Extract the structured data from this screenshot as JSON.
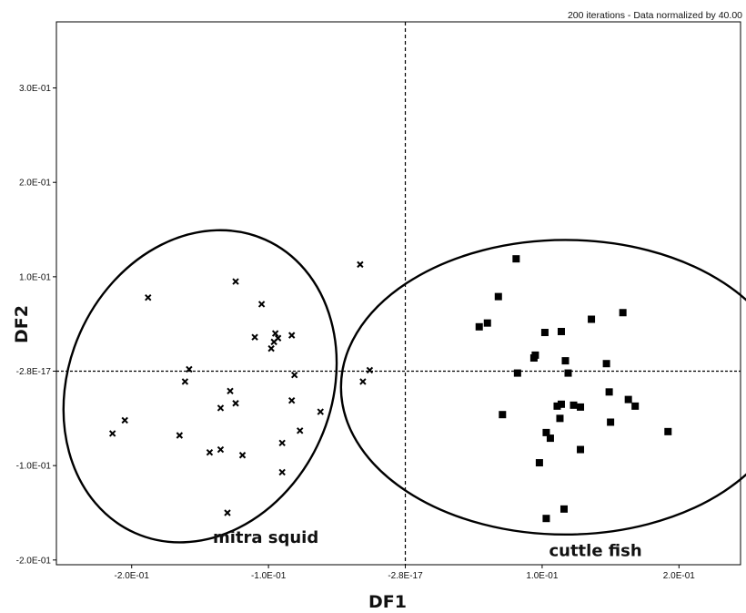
{
  "caption": "200 iterations - Data normalized by 40.00",
  "chart_data": {
    "type": "scatter",
    "xlabel": "DF1",
    "ylabel": "DF2",
    "xlim": [
      -0.255,
      0.245
    ],
    "ylim": [
      -0.205,
      0.37
    ],
    "x_ticks": [
      {
        "value": -0.2,
        "label": "-2.0E-01"
      },
      {
        "value": -0.1,
        "label": "-1.0E-01"
      },
      {
        "value": 0.0,
        "label": "-2.8E-17"
      },
      {
        "value": 0.1,
        "label": "1.0E-01"
      },
      {
        "value": 0.2,
        "label": "2.0E-01"
      }
    ],
    "y_ticks": [
      {
        "value": 0.3,
        "label": "3.0E-01"
      },
      {
        "value": 0.2,
        "label": "2.0E-01"
      },
      {
        "value": 0.1,
        "label": "1.0E-01"
      },
      {
        "value": 0.0,
        "label": "-2.8E-17"
      },
      {
        "value": -0.1,
        "label": "-1.0E-01"
      },
      {
        "value": -0.2,
        "label": "-2.0E-01"
      }
    ],
    "reference_lines": {
      "x": 0.0,
      "y": 0.0
    },
    "series": [
      {
        "name": "mitra squid",
        "marker": "x",
        "ellipse": {
          "cx": -0.15,
          "cy": -0.016,
          "rx": 0.096,
          "ry": 0.17,
          "rotation_deg": 24
        },
        "points": [
          [
            -0.033,
            0.113
          ],
          [
            -0.188,
            0.078
          ],
          [
            -0.124,
            0.095
          ],
          [
            -0.105,
            0.071
          ],
          [
            -0.095,
            0.04
          ],
          [
            -0.11,
            0.036
          ],
          [
            -0.083,
            0.038
          ],
          [
            -0.093,
            0.035
          ],
          [
            -0.096,
            0.031
          ],
          [
            -0.098,
            0.024
          ],
          [
            -0.158,
            0.002
          ],
          [
            -0.026,
            0.001
          ],
          [
            -0.081,
            -0.004
          ],
          [
            -0.161,
            -0.011
          ],
          [
            -0.031,
            -0.011
          ],
          [
            -0.128,
            -0.021
          ],
          [
            -0.083,
            -0.031
          ],
          [
            -0.124,
            -0.034
          ],
          [
            -0.135,
            -0.039
          ],
          [
            -0.062,
            -0.043
          ],
          [
            -0.205,
            -0.052
          ],
          [
            -0.214,
            -0.066
          ],
          [
            -0.077,
            -0.063
          ],
          [
            -0.165,
            -0.068
          ],
          [
            -0.09,
            -0.076
          ],
          [
            -0.135,
            -0.083
          ],
          [
            -0.143,
            -0.086
          ],
          [
            -0.119,
            -0.089
          ],
          [
            -0.09,
            -0.107
          ],
          [
            -0.13,
            -0.15
          ]
        ]
      },
      {
        "name": "cuttle fish",
        "marker": "square",
        "ellipse": {
          "cx": 0.117,
          "cy": -0.017,
          "rx": 0.164,
          "ry": 0.156,
          "rotation_deg": 0
        },
        "points": [
          [
            0.081,
            0.119
          ],
          [
            0.068,
            0.079
          ],
          [
            0.06,
            0.051
          ],
          [
            0.054,
            0.047
          ],
          [
            0.136,
            0.055
          ],
          [
            0.159,
            0.062
          ],
          [
            0.102,
            0.041
          ],
          [
            0.114,
            0.042
          ],
          [
            0.095,
            0.017
          ],
          [
            0.094,
            0.014
          ],
          [
            0.117,
            0.011
          ],
          [
            0.147,
            0.008
          ],
          [
            0.082,
            -0.002
          ],
          [
            0.119,
            -0.002
          ],
          [
            0.149,
            -0.022
          ],
          [
            0.163,
            -0.03
          ],
          [
            0.168,
            -0.037
          ],
          [
            0.114,
            -0.035
          ],
          [
            0.123,
            -0.036
          ],
          [
            0.111,
            -0.037
          ],
          [
            0.128,
            -0.038
          ],
          [
            0.071,
            -0.046
          ],
          [
            0.113,
            -0.05
          ],
          [
            0.15,
            -0.054
          ],
          [
            0.192,
            -0.064
          ],
          [
            0.103,
            -0.065
          ],
          [
            0.106,
            -0.071
          ],
          [
            0.128,
            -0.083
          ],
          [
            0.098,
            -0.097
          ],
          [
            0.116,
            -0.146
          ],
          [
            0.103,
            -0.156
          ]
        ]
      }
    ],
    "group_labels": [
      {
        "text": "mitra squid",
        "x": -0.102,
        "y": -0.182
      },
      {
        "text": "cuttle fish",
        "x": 0.139,
        "y": -0.196
      }
    ],
    "grid": false,
    "legend": "none"
  }
}
